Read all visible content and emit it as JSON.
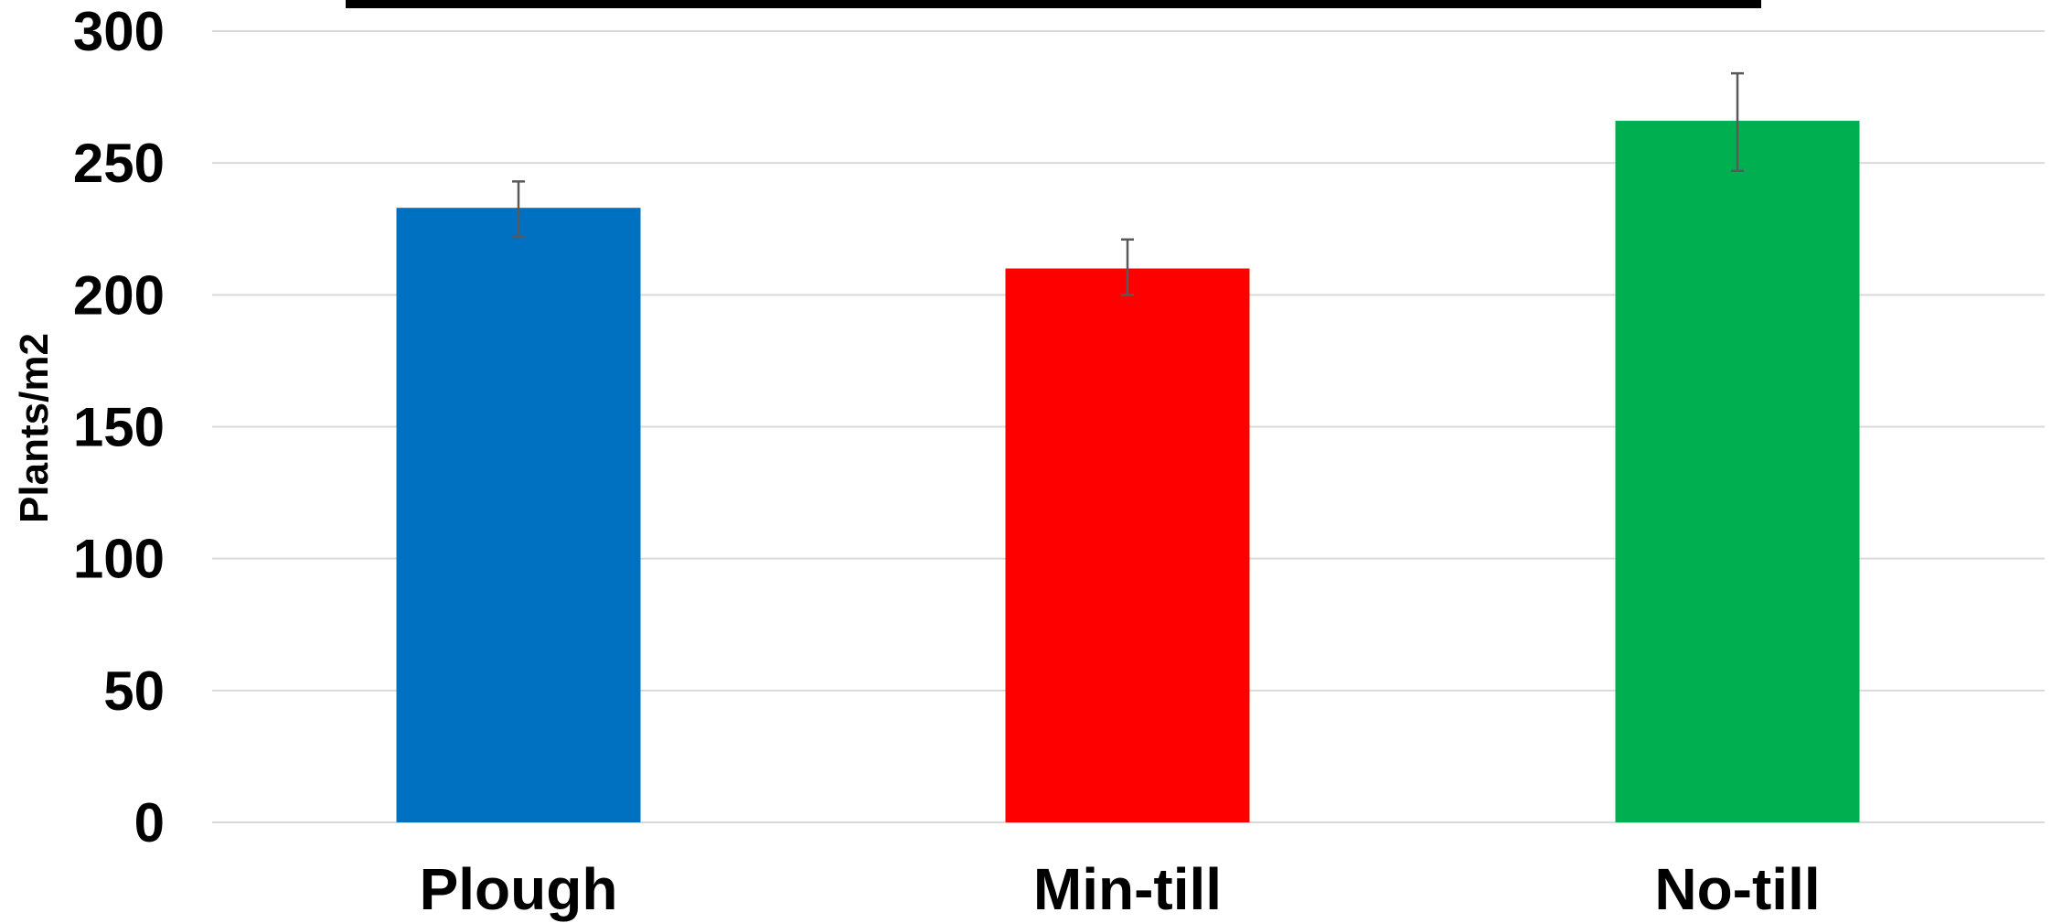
{
  "chart_data": {
    "type": "bar",
    "title": "",
    "xlabel": "",
    "ylabel": "Plants/m2",
    "ylim": [
      0,
      300
    ],
    "yticks": [
      0,
      50,
      100,
      150,
      200,
      250,
      300
    ],
    "grid": true,
    "legend": "none",
    "categories": [
      "Plough",
      "Min-till",
      "No-till"
    ],
    "values": [
      233,
      210,
      266
    ],
    "error_bars": [
      {
        "low": 222,
        "high": 243
      },
      {
        "low": 200,
        "high": 221
      },
      {
        "low": 247,
        "high": 284
      }
    ],
    "colors": [
      "#0070C0",
      "#FF0000",
      "#00B050"
    ],
    "error_bar_color": "#595959",
    "gridline_color": "#d9d9d9",
    "top_bar_color": "#000000"
  }
}
